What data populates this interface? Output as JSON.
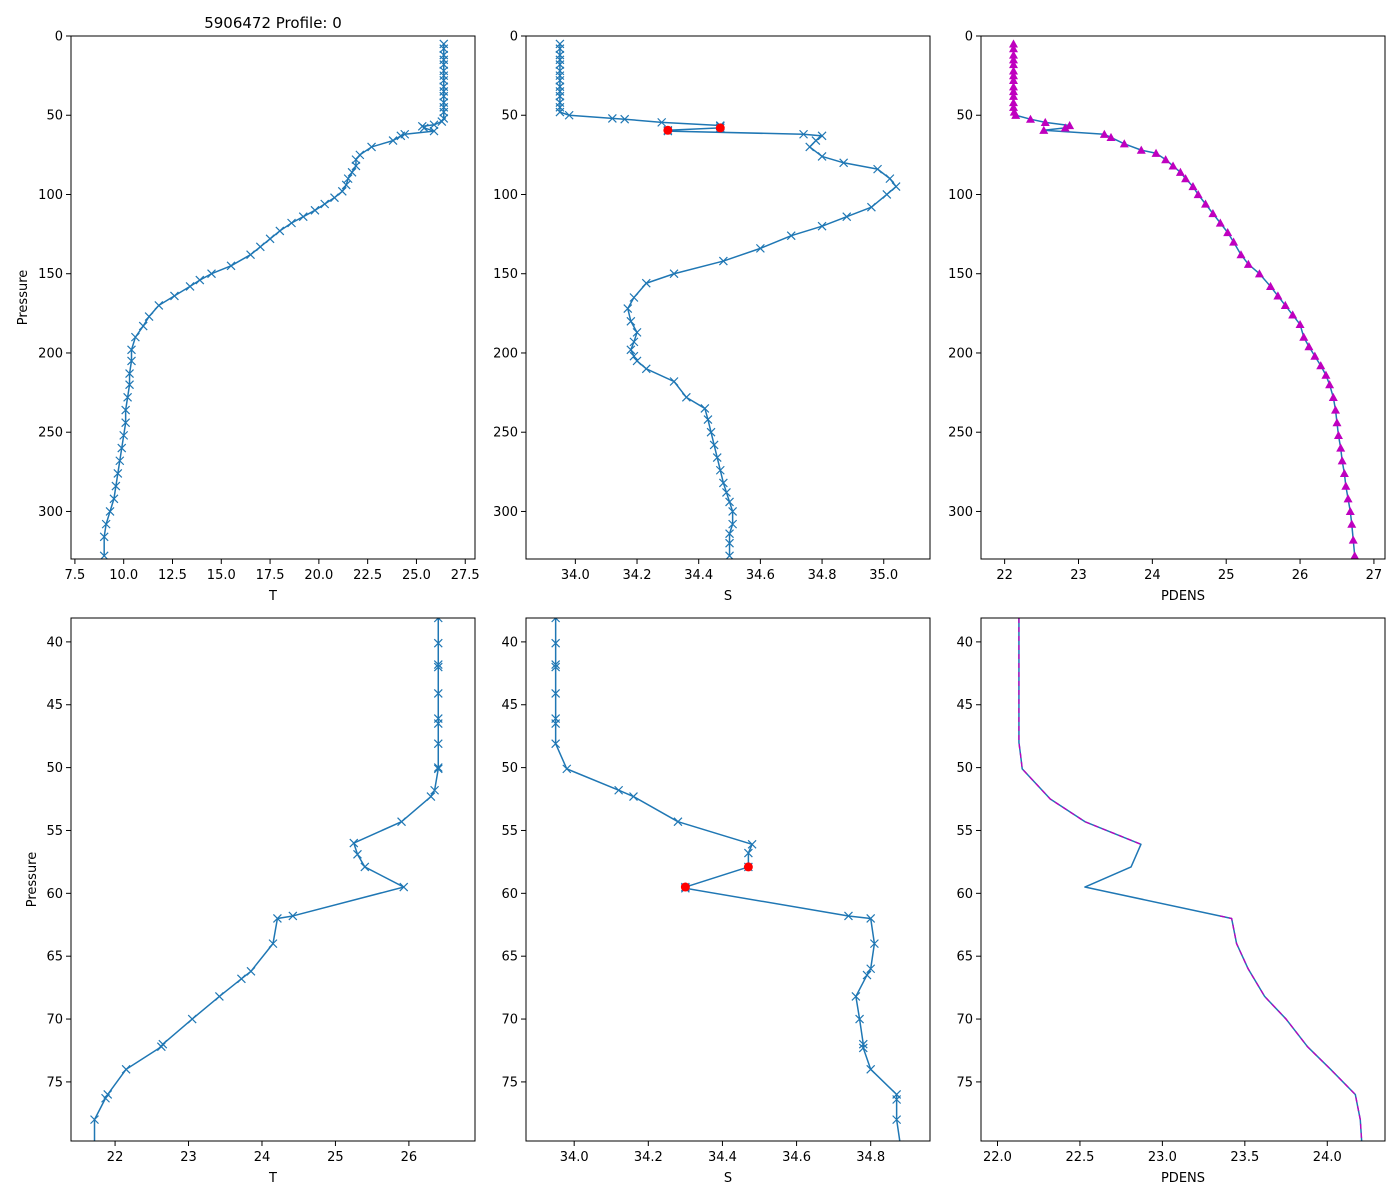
{
  "figure": {
    "title": "5906472 Profile: 0"
  },
  "colors": {
    "series_line": "#1f77b4",
    "flag_marker": "#ff0000",
    "density_marker": "#bf00bf",
    "axes": "#000000"
  },
  "chart_data": [
    {
      "id": "panel-top-temperature",
      "type": "line",
      "title": "5906472 Profile: 0",
      "xlabel": "T",
      "ylabel": "Pressure",
      "xlim": [
        7.3,
        28.0
      ],
      "ylim": [
        330,
        0
      ],
      "xticks": [
        7.5,
        10.0,
        12.5,
        15.0,
        17.5,
        20.0,
        22.5,
        25.0,
        27.5
      ],
      "xtick_labels": [
        "7.5",
        "10.0",
        "12.5",
        "15.0",
        "17.5",
        "20.0",
        "22.5",
        "25.0",
        "27.5"
      ],
      "yticks": [
        0,
        50,
        100,
        150,
        200,
        250,
        300
      ],
      "ytick_labels": [
        "0",
        "50",
        "100",
        "150",
        "200",
        "250",
        "300"
      ],
      "marker": "x",
      "series": [
        {
          "name": "T",
          "x": [
            26.4,
            26.4,
            26.4,
            26.4,
            26.4,
            26.4,
            26.4,
            26.4,
            26.4,
            26.4,
            26.4,
            26.4,
            26.4,
            26.4,
            26.4,
            26.3,
            25.9,
            25.3,
            25.4,
            25.9,
            24.4,
            24.2,
            23.8,
            22.7,
            22.1,
            21.9,
            21.9,
            21.7,
            21.5,
            21.4,
            21.2,
            20.8,
            20.3,
            19.8,
            19.2,
            18.6,
            18.0,
            17.5,
            17.0,
            16.5,
            15.5,
            14.5,
            13.9,
            13.4,
            12.6,
            11.8,
            11.3,
            11.0,
            10.6,
            10.4,
            10.4,
            10.3,
            10.3,
            10.2,
            10.1,
            10.1,
            10.0,
            9.9,
            9.8,
            9.7,
            9.6,
            9.5,
            9.3,
            9.1,
            9.0,
            9.0
          ],
          "y": [
            5,
            8,
            12,
            15,
            18,
            22,
            25,
            28,
            32,
            35,
            38,
            42,
            45,
            48,
            52,
            54,
            56,
            57,
            58,
            60,
            62,
            63,
            66,
            70,
            75,
            78,
            82,
            86,
            90,
            94,
            98,
            102,
            106,
            110,
            114,
            118,
            123,
            128,
            133,
            138,
            145,
            150,
            154,
            158,
            164,
            170,
            177,
            183,
            190,
            198,
            205,
            213,
            220,
            228,
            236,
            244,
            252,
            260,
            268,
            276,
            284,
            292,
            300,
            308,
            316,
            328
          ]
        }
      ]
    },
    {
      "id": "panel-top-salinity",
      "type": "line",
      "title": "",
      "xlabel": "S",
      "ylabel": "",
      "xlim": [
        33.84,
        35.15
      ],
      "ylim": [
        330,
        0
      ],
      "xticks": [
        34.0,
        34.2,
        34.4,
        34.6,
        34.8,
        35.0
      ],
      "xtick_labels": [
        "34.0",
        "34.2",
        "34.4",
        "34.6",
        "34.8",
        "35.0"
      ],
      "yticks": [
        0,
        50,
        100,
        150,
        200,
        250,
        300
      ],
      "ytick_labels": [
        "0",
        "50",
        "100",
        "150",
        "200",
        "250",
        "300"
      ],
      "marker": "x",
      "series": [
        {
          "name": "S",
          "x": [
            33.95,
            33.95,
            33.95,
            33.95,
            33.95,
            33.95,
            33.95,
            33.95,
            33.95,
            33.95,
            33.95,
            33.95,
            33.95,
            33.95,
            33.98,
            34.12,
            34.16,
            34.28,
            34.47,
            34.47,
            34.47,
            34.3,
            34.3,
            34.74,
            34.8,
            34.78,
            34.76,
            34.8,
            34.87,
            34.98,
            35.02,
            35.04,
            35.01,
            34.96,
            34.88,
            34.8,
            34.7,
            34.6,
            34.48,
            34.32,
            34.23,
            34.19,
            34.17,
            34.18,
            34.2,
            34.19,
            34.18,
            34.19,
            34.2,
            34.23,
            34.32,
            34.36,
            34.42,
            34.43,
            34.44,
            34.45,
            34.46,
            34.47,
            34.48,
            34.49,
            34.5,
            34.51,
            34.51,
            34.5,
            34.5,
            34.5
          ],
          "y": [
            5,
            8,
            12,
            15,
            18,
            22,
            25,
            28,
            32,
            35,
            38,
            42,
            45,
            48,
            50,
            52,
            52.5,
            54.5,
            56.5,
            57,
            58,
            59.5,
            60,
            62,
            63,
            66,
            70,
            76,
            80,
            84,
            90,
            95,
            100,
            108,
            114,
            120,
            126,
            134,
            142,
            150,
            156,
            165,
            172,
            180,
            187,
            193,
            198,
            202,
            205,
            210,
            218,
            228,
            235,
            242,
            250,
            258,
            266,
            274,
            282,
            288,
            294,
            300,
            308,
            314,
            320,
            328
          ]
        },
        {
          "name": "flagged",
          "marker": "o",
          "x": [
            34.47,
            34.3
          ],
          "y": [
            58,
            59.5
          ]
        }
      ]
    },
    {
      "id": "panel-top-density",
      "type": "line",
      "title": "",
      "xlabel": "PDENS",
      "ylabel": "",
      "xlim": [
        21.68,
        27.15
      ],
      "ylim": [
        330,
        0
      ],
      "xticks": [
        22,
        23,
        24,
        25,
        26,
        27
      ],
      "xtick_labels": [
        "22",
        "23",
        "24",
        "25",
        "26",
        "27"
      ],
      "yticks": [
        0,
        50,
        100,
        150,
        200,
        250,
        300
      ],
      "ytick_labels": [
        "0",
        "50",
        "100",
        "150",
        "200",
        "250",
        "300"
      ],
      "marker": "^",
      "series": [
        {
          "name": "PDENS",
          "x": [
            22.12,
            22.12,
            22.12,
            22.12,
            22.12,
            22.12,
            22.12,
            22.12,
            22.12,
            22.12,
            22.12,
            22.12,
            22.12,
            22.13,
            22.15,
            22.35,
            22.55,
            22.88,
            22.82,
            22.53,
            23.35,
            23.44,
            23.62,
            23.85,
            24.05,
            24.18,
            24.28,
            24.38,
            24.45,
            24.55,
            24.62,
            24.72,
            24.82,
            24.92,
            25.02,
            25.1,
            25.2,
            25.3,
            25.45,
            25.6,
            25.7,
            25.8,
            25.9,
            26.0,
            26.05,
            26.12,
            26.2,
            26.28,
            26.35,
            26.4,
            26.45,
            26.48,
            26.5,
            26.52,
            26.55,
            26.57,
            26.6,
            26.62,
            26.65,
            26.68,
            26.7,
            26.72,
            26.74
          ],
          "y": [
            5,
            8,
            12,
            15,
            18,
            22,
            25,
            28,
            32,
            35,
            38,
            42,
            45,
            48,
            50,
            52.5,
            54.5,
            56.5,
            58,
            59.5,
            62,
            64,
            68,
            72,
            74,
            78,
            82,
            86,
            90,
            95,
            100,
            106,
            112,
            118,
            124,
            130,
            138,
            144,
            150,
            158,
            164,
            170,
            176,
            182,
            190,
            196,
            202,
            208,
            214,
            220,
            228,
            236,
            244,
            252,
            260,
            268,
            276,
            284,
            292,
            300,
            308,
            318,
            328
          ]
        }
      ]
    },
    {
      "id": "panel-bottom-temperature",
      "type": "line",
      "title": "",
      "xlabel": "T",
      "ylabel": "Pressure",
      "xlim": [
        21.4,
        26.9
      ],
      "ylim": [
        79.7,
        38.1
      ],
      "xticks": [
        22,
        23,
        24,
        25,
        26
      ],
      "xtick_labels": [
        "22",
        "23",
        "24",
        "25",
        "26"
      ],
      "yticks": [
        40,
        45,
        50,
        55,
        60,
        65,
        70,
        75
      ],
      "ytick_labels": [
        "40",
        "45",
        "50",
        "55",
        "60",
        "65",
        "70",
        "75"
      ],
      "marker": "x",
      "series": [
        {
          "name": "T",
          "x": [
            26.4,
            26.4,
            26.4,
            26.4,
            26.4,
            26.4,
            26.4,
            26.4,
            26.4,
            26.4,
            26.35,
            26.3,
            25.9,
            25.25,
            25.3,
            25.4,
            25.93,
            24.42,
            24.21,
            24.15,
            23.85,
            23.72,
            23.42,
            23.05,
            22.65,
            22.63,
            22.15,
            21.9,
            21.87,
            21.72,
            21.72
          ],
          "y": [
            38.1,
            40.1,
            41.8,
            42.0,
            44.1,
            46.1,
            46.5,
            48.1,
            50.0,
            50.1,
            51.8,
            52.3,
            54.3,
            56.0,
            56.9,
            57.9,
            59.5,
            61.8,
            62.0,
            64.0,
            66.2,
            66.8,
            68.2,
            70.0,
            72.0,
            72.2,
            74.0,
            76.0,
            76.3,
            78.0,
            80.0
          ]
        }
      ]
    },
    {
      "id": "panel-bottom-salinity",
      "type": "line",
      "title": "",
      "xlabel": "S",
      "ylabel": "",
      "xlim": [
        33.87,
        34.96
      ],
      "ylim": [
        79.7,
        38.1
      ],
      "xticks": [
        34.0,
        34.2,
        34.4,
        34.6,
        34.8
      ],
      "xtick_labels": [
        "34.0",
        "34.2",
        "34.4",
        "34.6",
        "34.8"
      ],
      "yticks": [
        40,
        45,
        50,
        55,
        60,
        65,
        70,
        75
      ],
      "ytick_labels": [
        "40",
        "45",
        "50",
        "55",
        "60",
        "65",
        "70",
        "75"
      ],
      "marker": "x",
      "series": [
        {
          "name": "S",
          "x": [
            33.95,
            33.95,
            33.95,
            33.95,
            33.95,
            33.95,
            33.95,
            33.95,
            33.98,
            34.12,
            34.16,
            34.28,
            34.48,
            34.47,
            34.47,
            34.3,
            34.3,
            34.74,
            34.8,
            34.81,
            34.8,
            34.79,
            34.76,
            34.77,
            34.78,
            34.78,
            34.8,
            34.87,
            34.87,
            34.87,
            34.88
          ],
          "y": [
            38.1,
            40.1,
            41.8,
            42.0,
            44.1,
            46.1,
            46.5,
            48.1,
            50.1,
            51.8,
            52.3,
            54.3,
            56.1,
            56.8,
            57.9,
            59.5,
            59.6,
            61.8,
            62.0,
            64.0,
            66.0,
            66.5,
            68.2,
            70.0,
            72.0,
            72.3,
            74.0,
            76.0,
            76.4,
            78.0,
            80.0
          ]
        },
        {
          "name": "flagged",
          "marker": "o",
          "x": [
            34.47,
            34.3
          ],
          "y": [
            57.9,
            59.5
          ]
        }
      ]
    },
    {
      "id": "panel-bottom-density",
      "type": "line",
      "title": "",
      "xlabel": "PDENS",
      "ylabel": "",
      "xlim": [
        21.9,
        24.35
      ],
      "ylim": [
        79.7,
        38.1
      ],
      "xticks": [
        22.0,
        22.5,
        23.0,
        23.5,
        24.0
      ],
      "xtick_labels": [
        "22.0",
        "22.5",
        "23.0",
        "23.5",
        "24.0"
      ],
      "yticks": [
        40,
        45,
        50,
        55,
        60,
        65,
        70,
        75
      ],
      "ytick_labels": [
        "40",
        "45",
        "50",
        "55",
        "60",
        "65",
        "70",
        "75"
      ],
      "marker": "",
      "series": [
        {
          "name": "PDENS",
          "x": [
            22.13,
            22.13,
            22.13,
            22.13,
            22.14,
            22.15,
            22.32,
            22.53,
            22.87,
            22.81,
            22.53,
            23.35,
            23.42,
            23.45,
            23.52,
            23.62,
            23.75,
            23.88,
            24.02,
            24.17,
            24.2,
            24.21
          ],
          "y": [
            38.1,
            42.0,
            45.0,
            48.0,
            49.0,
            50.1,
            52.5,
            54.3,
            56.1,
            57.9,
            59.5,
            61.8,
            62.0,
            64.0,
            66.0,
            68.2,
            70.0,
            72.2,
            74.0,
            76.0,
            78.0,
            80.0
          ]
        },
        {
          "name": "PDENS-dashed",
          "style": "dashed",
          "x": [
            22.13,
            22.13,
            22.13,
            22.13,
            22.14,
            22.15,
            22.32,
            22.53,
            22.87
          ],
          "y": [
            38.1,
            42.0,
            45.0,
            48.0,
            49.0,
            50.1,
            52.5,
            54.3,
            56.1
          ]
        },
        {
          "name": "PDENS-dashed-lower",
          "style": "dashed",
          "x": [
            23.35,
            23.42,
            23.45,
            23.52,
            23.62,
            23.75,
            23.88,
            24.02,
            24.17,
            24.2,
            24.21
          ],
          "y": [
            61.8,
            62.0,
            64.0,
            66.0,
            68.2,
            70.0,
            72.2,
            74.0,
            76.0,
            78.0,
            80.0
          ]
        }
      ]
    }
  ]
}
